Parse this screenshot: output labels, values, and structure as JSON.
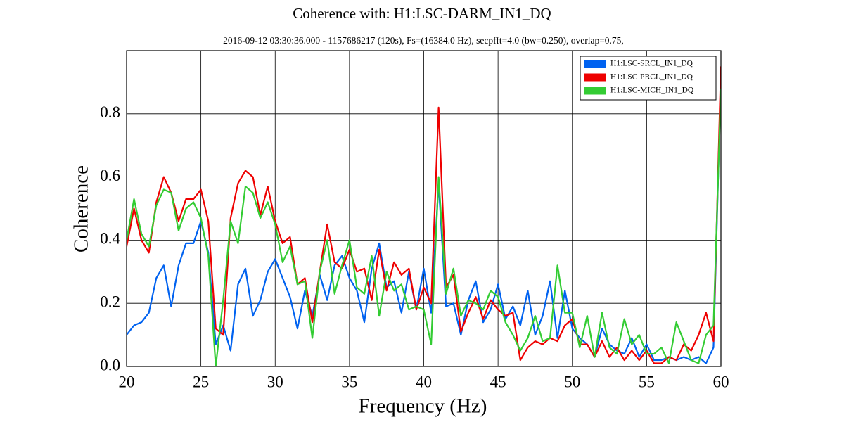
{
  "chart_data": {
    "type": "line",
    "title": "Coherence with: H1:LSC-DARM_IN1_DQ",
    "subtitle": "2016-09-12 03:30:36.000 - 1157686217 (120s), Fs=(16384.0 Hz), secpfft=4.0 (bw=0.250), overlap=0.75,",
    "x_label": "Frequency (Hz)",
    "y_label": "Coherence",
    "xlim": [
      20,
      60
    ],
    "xticks": [
      20,
      25,
      30,
      35,
      40,
      45,
      50,
      55,
      60
    ],
    "ylim": [
      0,
      1
    ],
    "yticks": [
      {
        "value": 0,
        "label": "0.0"
      },
      0.2,
      0.4,
      0.6,
      0.8
    ],
    "grid": true,
    "legend": "upper right",
    "x": [
      20,
      20.5,
      21,
      21.5,
      22,
      22.5,
      23,
      23.5,
      24,
      24.5,
      25,
      25.5,
      26,
      26.5,
      27,
      27.5,
      28,
      28.5,
      29,
      29.5,
      30,
      30.5,
      31,
      31.5,
      32,
      32.5,
      33,
      33.5,
      34,
      34.5,
      35,
      35.5,
      36,
      36.5,
      37,
      37.5,
      38,
      38.5,
      39,
      39.5,
      40,
      40.5,
      41,
      41.5,
      42,
      42.5,
      43,
      43.5,
      44,
      44.5,
      45,
      45.5,
      46,
      46.5,
      47,
      47.5,
      48,
      48.5,
      49,
      49.5,
      50,
      50.5,
      51,
      51.5,
      52,
      52.5,
      53,
      53.5,
      54,
      54.5,
      55,
      55.5,
      56,
      56.5,
      57,
      57.5,
      58,
      58.5,
      59,
      59.5,
      60
    ],
    "series": [
      {
        "name": "H1:LSC-SRCL_IN1_DQ",
        "color": "#0062f0",
        "values": [
          0.1,
          0.13,
          0.14,
          0.17,
          0.28,
          0.32,
          0.19,
          0.32,
          0.39,
          0.39,
          0.46,
          0.36,
          0.07,
          0.13,
          0.05,
          0.26,
          0.31,
          0.16,
          0.21,
          0.3,
          0.34,
          0.28,
          0.22,
          0.12,
          0.24,
          0.16,
          0.29,
          0.21,
          0.32,
          0.35,
          0.28,
          0.24,
          0.14,
          0.31,
          0.39,
          0.25,
          0.27,
          0.17,
          0.3,
          0.18,
          0.31,
          0.17,
          0.58,
          0.19,
          0.2,
          0.1,
          0.21,
          0.27,
          0.14,
          0.18,
          0.26,
          0.15,
          0.19,
          0.13,
          0.24,
          0.1,
          0.16,
          0.27,
          0.09,
          0.24,
          0.12,
          0.09,
          0.07,
          0.03,
          0.12,
          0.07,
          0.05,
          0.04,
          0.09,
          0.03,
          0.07,
          0.02,
          0.02,
          0.03,
          0.02,
          0.03,
          0.02,
          0.03,
          0.01,
          0.06,
          0.92
        ]
      },
      {
        "name": "H1:LSC-PRCL_IN1_DQ",
        "color": "#ee0000",
        "values": [
          0.38,
          0.5,
          0.4,
          0.36,
          0.52,
          0.6,
          0.55,
          0.46,
          0.53,
          0.53,
          0.56,
          0.46,
          0.12,
          0.1,
          0.47,
          0.58,
          0.62,
          0.6,
          0.48,
          0.57,
          0.46,
          0.39,
          0.41,
          0.26,
          0.28,
          0.14,
          0.3,
          0.45,
          0.33,
          0.31,
          0.37,
          0.3,
          0.31,
          0.21,
          0.37,
          0.24,
          0.33,
          0.29,
          0.31,
          0.18,
          0.25,
          0.2,
          0.82,
          0.25,
          0.29,
          0.11,
          0.17,
          0.22,
          0.15,
          0.21,
          0.18,
          0.16,
          0.17,
          0.02,
          0.06,
          0.08,
          0.07,
          0.09,
          0.08,
          0.13,
          0.15,
          0.07,
          0.07,
          0.03,
          0.08,
          0.03,
          0.06,
          0.02,
          0.05,
          0.02,
          0.05,
          0.01,
          0.01,
          0.03,
          0.02,
          0.07,
          0.05,
          0.1,
          0.17,
          0.08,
          0.95
        ]
      },
      {
        "name": "H1:LSC-MICH_IN1_DQ",
        "color": "#33cc33",
        "values": [
          0.4,
          0.53,
          0.42,
          0.38,
          0.51,
          0.56,
          0.55,
          0.43,
          0.5,
          0.52,
          0.47,
          0.35,
          0.0,
          0.21,
          0.46,
          0.39,
          0.57,
          0.55,
          0.47,
          0.52,
          0.45,
          0.33,
          0.38,
          0.26,
          0.27,
          0.09,
          0.3,
          0.4,
          0.23,
          0.32,
          0.4,
          0.25,
          0.23,
          0.35,
          0.16,
          0.3,
          0.24,
          0.26,
          0.18,
          0.19,
          0.18,
          0.07,
          0.6,
          0.23,
          0.31,
          0.16,
          0.21,
          0.2,
          0.18,
          0.24,
          0.22,
          0.14,
          0.1,
          0.05,
          0.09,
          0.16,
          0.08,
          0.09,
          0.32,
          0.17,
          0.17,
          0.06,
          0.16,
          0.03,
          0.17,
          0.06,
          0.04,
          0.15,
          0.07,
          0.1,
          0.04,
          0.04,
          0.06,
          0.01,
          0.14,
          0.08,
          0.02,
          0.01,
          0.1,
          0.13,
          0.88
        ]
      }
    ]
  }
}
